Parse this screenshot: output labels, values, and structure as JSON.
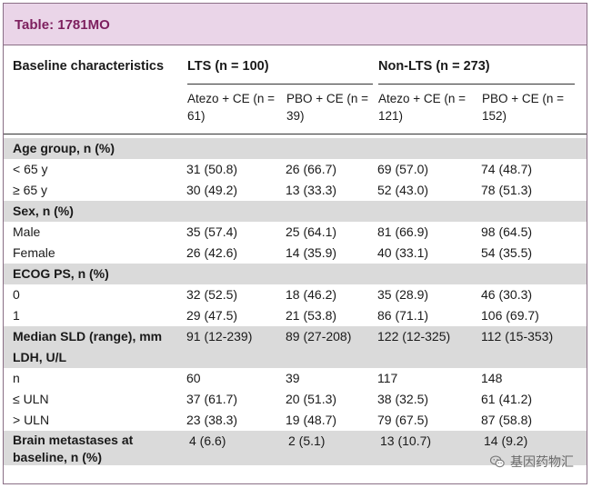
{
  "title": "Table: 1781MO",
  "header": {
    "col0": "Baseline characteristics",
    "lts": "LTS (n = 100)",
    "nonlts": "Non-LTS (n = 273)",
    "sub": [
      "Atezo + CE (n = 61)",
      "PBO + CE (n = 39)",
      "Atezo + CE (n = 121)",
      "PBO + CE (n = 152)"
    ]
  },
  "rows": [
    {
      "label": "Age group, n (%)",
      "section": true,
      "values": [
        "",
        "",
        "",
        ""
      ]
    },
    {
      "label": "< 65 y",
      "section": false,
      "values": [
        "31 (50.8)",
        "26 (66.7)",
        "69 (57.0)",
        "74 (48.7)"
      ]
    },
    {
      "label": "≥ 65 y",
      "section": false,
      "values": [
        "30 (49.2)",
        "13 (33.3)",
        "52 (43.0)",
        "78 (51.3)"
      ]
    },
    {
      "label": "Sex, n (%)",
      "section": true,
      "values": [
        "",
        "",
        "",
        ""
      ]
    },
    {
      "label": "Male",
      "section": false,
      "values": [
        "35 (57.4)",
        "25 (64.1)",
        "81 (66.9)",
        "98 (64.5)"
      ]
    },
    {
      "label": "Female",
      "section": false,
      "values": [
        "26 (42.6)",
        "14 (35.9)",
        "40 (33.1)",
        "54 (35.5)"
      ]
    },
    {
      "label": "ECOG PS, n (%)",
      "section": true,
      "values": [
        "",
        "",
        "",
        ""
      ]
    },
    {
      "label": "0",
      "section": false,
      "values": [
        "32 (52.5)",
        "18 (46.2)",
        "35 (28.9)",
        "46 (30.3)"
      ]
    },
    {
      "label": "1",
      "section": false,
      "values": [
        "29 (47.5)",
        "21 (53.8)",
        "86 (71.1)",
        "106 (69.7)"
      ]
    },
    {
      "label": "Median SLD (range), mm",
      "section": true,
      "values": [
        "91 (12-239)",
        "89 (27-208)",
        "122 (12-325)",
        "112 (15-353)"
      ]
    },
    {
      "label": "LDH, U/L",
      "section": true,
      "values": [
        "",
        "",
        "",
        ""
      ]
    },
    {
      "label": "n",
      "section": false,
      "values": [
        "60",
        "39",
        "117",
        "148"
      ]
    },
    {
      "label": "≤ ULN",
      "section": false,
      "values": [
        "37 (61.7)",
        "20 (51.3)",
        "38 (32.5)",
        "61 (41.2)"
      ]
    },
    {
      "label": "> ULN",
      "section": false,
      "values": [
        "23 (38.3)",
        "19 (48.7)",
        "79 (67.5)",
        "87 (58.8)"
      ]
    },
    {
      "label": "Brain metastases at baseline, n (%)",
      "section": true,
      "values": [
        "4 (6.6)",
        "2 (5.1)",
        "13 (10.7)",
        "14 (9.2)"
      ]
    }
  ],
  "watermark": {
    "text": "基因药物汇",
    "icon": "wechat-icon"
  }
}
